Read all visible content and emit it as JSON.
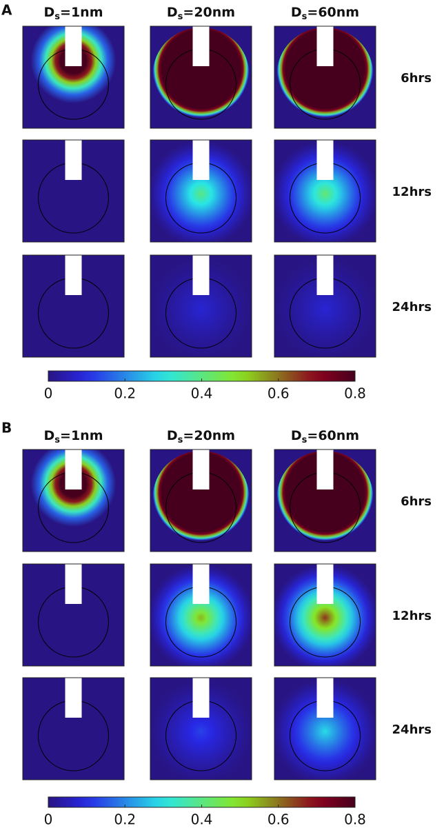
{
  "panels": [
    {
      "label": "A",
      "columns": [
        {
          "symbol": "D",
          "subscript": "s",
          "text": "=1nm"
        },
        {
          "symbol": "D",
          "subscript": "s",
          "text": "=20nm"
        },
        {
          "symbol": "D",
          "subscript": "s",
          "text": "=60nm"
        }
      ],
      "rows": [
        "6hrs",
        "12hrs",
        "24hrs"
      ],
      "colorbar": {
        "range": [
          0,
          0.8
        ],
        "ticks": [
          0,
          0.2,
          0.4,
          0.6,
          0.8
        ]
      }
    },
    {
      "label": "B",
      "columns": [
        {
          "symbol": "D",
          "subscript": "s",
          "text": "=1nm"
        },
        {
          "symbol": "D",
          "subscript": "s",
          "text": "=20nm"
        },
        {
          "symbol": "D",
          "subscript": "s",
          "text": "=60nm"
        }
      ],
      "rows": [
        "6hrs",
        "12hrs",
        "24hrs"
      ],
      "colorbar": {
        "range": [
          0,
          0.8
        ],
        "ticks": [
          0,
          0.2,
          0.4,
          0.6,
          0.8
        ]
      }
    }
  ]
}
